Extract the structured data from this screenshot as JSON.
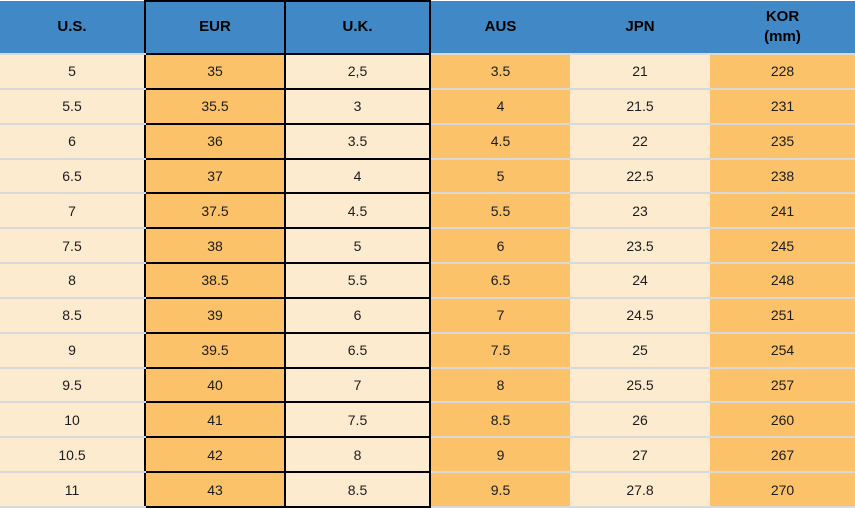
{
  "table": {
    "columns": [
      {
        "key": "us",
        "label": "U.S."
      },
      {
        "key": "eur",
        "label": "EUR"
      },
      {
        "key": "uk",
        "label": "U.K."
      },
      {
        "key": "aus",
        "label": "AUS"
      },
      {
        "key": "jpn",
        "label": "JPN"
      },
      {
        "key": "kor",
        "label": "KOR\n(mm)"
      }
    ],
    "rows": [
      [
        "5",
        "35",
        "2,5",
        "3.5",
        "21",
        "228"
      ],
      [
        "5.5",
        "35.5",
        "3",
        "4",
        "21.5",
        "231"
      ],
      [
        "6",
        "36",
        "3.5",
        "4.5",
        "22",
        "235"
      ],
      [
        "6.5",
        "37",
        "4",
        "5",
        "22.5",
        "238"
      ],
      [
        "7",
        "37.5",
        "4.5",
        "5.5",
        "23",
        "241"
      ],
      [
        "7.5",
        "38",
        "5",
        "6",
        "23.5",
        "245"
      ],
      [
        "8",
        "38.5",
        "5.5",
        "6.5",
        "24",
        "248"
      ],
      [
        "8.5",
        "39",
        "6",
        "7",
        "24.5",
        "251"
      ],
      [
        "9",
        "39.5",
        "6.5",
        "7.5",
        "25",
        "254"
      ],
      [
        "9.5",
        "40",
        "7",
        "8",
        "25.5",
        "257"
      ],
      [
        "10",
        "41",
        "7.5",
        "8.5",
        "26",
        "260"
      ],
      [
        "10.5",
        "42",
        "8",
        "9",
        "27",
        "267"
      ],
      [
        "11",
        "43",
        "8.5",
        "9.5",
        "27.8",
        "270"
      ]
    ],
    "colors": {
      "header_background": "#4189c6",
      "header_text": "#000000",
      "orange_cell": "#fcc269",
      "cream_cell": "#fdebcf",
      "black_grid": "#000000",
      "row_separator": "#d9d9d9",
      "body_text": "#1c1c1c"
    }
  }
}
